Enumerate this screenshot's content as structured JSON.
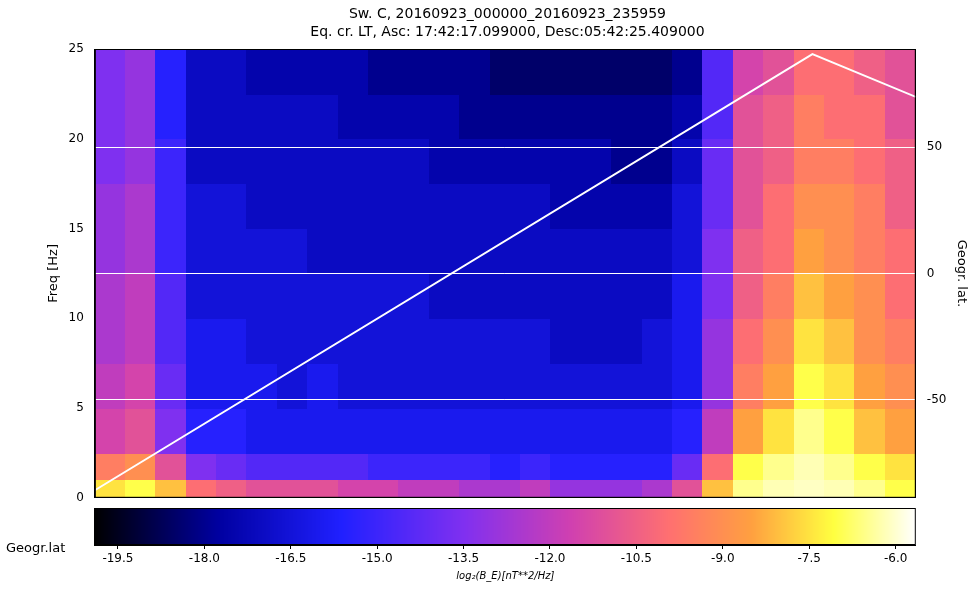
{
  "chart_data": {
    "type": "spectrogram",
    "title": "Sw. C, 20160923_000000_20160923_235959",
    "subtitle": "Eq. cr. LT, Asc: 17:42:17.099000, Desc:05:42:25.409000",
    "ylabel": "Freq [Hz]",
    "y2label": "Geogr. lat.",
    "annotation": "Geogr.lat",
    "xlim": [
      0,
      54
    ],
    "ylim": [
      0,
      25
    ],
    "yticks": [
      0,
      5,
      10,
      15,
      20,
      25
    ],
    "y2lim": [
      -89,
      89
    ],
    "y2ticks": [
      -50,
      0,
      50
    ],
    "grid": true,
    "time_bins": [
      0,
      2,
      4,
      6,
      8,
      10,
      12,
      14,
      16,
      18,
      20,
      22,
      24,
      26,
      28,
      30,
      32,
      34,
      36,
      38,
      40,
      42,
      44,
      46,
      48,
      50,
      52,
      54
    ],
    "freq_bins": [
      0,
      1,
      2.5,
      5,
      7.5,
      10,
      12.5,
      15,
      17.5,
      20,
      22.5,
      25
    ],
    "cells": [
      [
        -7.5,
        -9.5,
        -11.5,
        -12,
        -12.5,
        -12.5,
        -13,
        -13,
        -13.5,
        -13.5,
        -13.5
      ],
      [
        -7,
        -9,
        -11,
        -11.5,
        -12,
        -12,
        -12.5,
        -12.5,
        -13,
        -13,
        -13
      ],
      [
        -8,
        -11,
        -13.5,
        -14,
        -14.5,
        -14.5,
        -15,
        -15,
        -15,
        -15.5,
        -15.5
      ],
      [
        -10,
        -13.5,
        -15.5,
        -16,
        -16,
        -16.5,
        -16.5,
        -16.5,
        -17,
        -17,
        -17
      ],
      [
        -10.5,
        -14,
        -15.5,
        -16,
        -16,
        -16.5,
        -16.5,
        -16.5,
        -17,
        -17,
        -17
      ],
      [
        -11,
        -14.5,
        -16,
        -16,
        -16.5,
        -16.5,
        -16.5,
        -17,
        -17,
        -17,
        -17.5
      ],
      [
        -11,
        -14.5,
        -16,
        -16.5,
        -16.5,
        -16.5,
        -16.5,
        -17,
        -17,
        -17,
        -17.5
      ],
      [
        -11,
        -14.5,
        -16,
        -16,
        -16.5,
        -16.5,
        -17,
        -17,
        -17,
        -17,
        -17.5
      ],
      [
        -11.5,
        -14.5,
        -16,
        -16.5,
        -16.5,
        -16.5,
        -17,
        -17,
        -17,
        -17.5,
        -17.5
      ],
      [
        -11.5,
        -15,
        -16,
        -16.5,
        -16.5,
        -16.5,
        -17,
        -17,
        -17,
        -17.5,
        -18
      ],
      [
        -12,
        -15,
        -16,
        -16.5,
        -16.5,
        -16.5,
        -17,
        -17,
        -17,
        -17.5,
        -18
      ],
      [
        -12,
        -15,
        -16,
        -16.5,
        -16.5,
        -17,
        -17,
        -17,
        -17.5,
        -17.5,
        -18
      ],
      [
        -12.5,
        -15,
        -16,
        -16.5,
        -16.5,
        -17,
        -17,
        -17,
        -17.5,
        -18,
        -18
      ],
      [
        -12.5,
        -15.5,
        -16,
        -16.5,
        -16.5,
        -17,
        -17,
        -17,
        -17.5,
        -18,
        -18.5
      ],
      [
        -12,
        -15,
        -16,
        -16.5,
        -16.5,
        -17,
        -17,
        -17,
        -17.5,
        -18,
        -18.5
      ],
      [
        -13,
        -15.5,
        -16,
        -16.5,
        -17,
        -17,
        -17,
        -17.5,
        -17.5,
        -18,
        -18.5
      ],
      [
        -13,
        -15.5,
        -16,
        -16.5,
        -17,
        -17,
        -17,
        -17.5,
        -17.5,
        -18,
        -18.5
      ],
      [
        -13,
        -15.5,
        -16,
        -16.5,
        -17,
        -17,
        -17,
        -17.5,
        -18,
        -18,
        -18.5
      ],
      [
        -12.5,
        -15.5,
        -16,
        -16.5,
        -16.5,
        -17,
        -17,
        -17.5,
        -18,
        -18,
        -18.5
      ],
      [
        -11,
        -14,
        -15.5,
        -16,
        -16,
        -16,
        -16.5,
        -16.5,
        -17,
        -17.5,
        -18
      ],
      [
        -8,
        -10,
        -12,
        -13,
        -13,
        -13.5,
        -13.5,
        -14,
        -14,
        -14.5,
        -14.5
      ],
      [
        -6.5,
        -7,
        -8.5,
        -9.5,
        -10,
        -10.5,
        -10.5,
        -11,
        -11,
        -11,
        -11.5
      ],
      [
        -6.2,
        -6.5,
        -7.5,
        -8.5,
        -9,
        -9.5,
        -10,
        -10,
        -10.5,
        -10.5,
        -11
      ],
      [
        -6.1,
        -6.2,
        -6.5,
        -7,
        -7.5,
        -8,
        -8.5,
        -9,
        -9.5,
        -9.5,
        -10
      ],
      [
        -6.2,
        -6.5,
        -7,
        -7.5,
        -8,
        -8.5,
        -9,
        -9,
        -9.5,
        -10,
        -10
      ],
      [
        -6.5,
        -7,
        -8,
        -8.5,
        -9,
        -9,
        -9.5,
        -9.5,
        -10,
        -10,
        -10.5
      ],
      [
        -7,
        -7.5,
        -8.5,
        -9,
        -9.5,
        -10,
        -10,
        -10.5,
        -10.5,
        -11,
        -11
      ]
    ],
    "colorbar": {
      "label": "log₂(B_E)[nT**2/Hz]",
      "lim": [
        -19.9,
        -5.65
      ],
      "ticks": [
        -19.5,
        {
          "value": -18,
          "label": "-18.0"
        },
        -16.5,
        {
          "value": -15,
          "label": "-15.0"
        },
        -13.5,
        {
          "value": -12,
          "label": "-12.0"
        },
        -10.5,
        {
          "value": -9,
          "label": "-9.0"
        },
        -7.5,
        {
          "value": -6,
          "label": "-6.0"
        }
      ]
    },
    "series": [
      {
        "type": "line",
        "axis": "y2",
        "color": "#ffffff",
        "x": [
          0,
          47.2,
          54
        ],
        "values": [
          -86,
          87,
          70
        ]
      }
    ]
  }
}
